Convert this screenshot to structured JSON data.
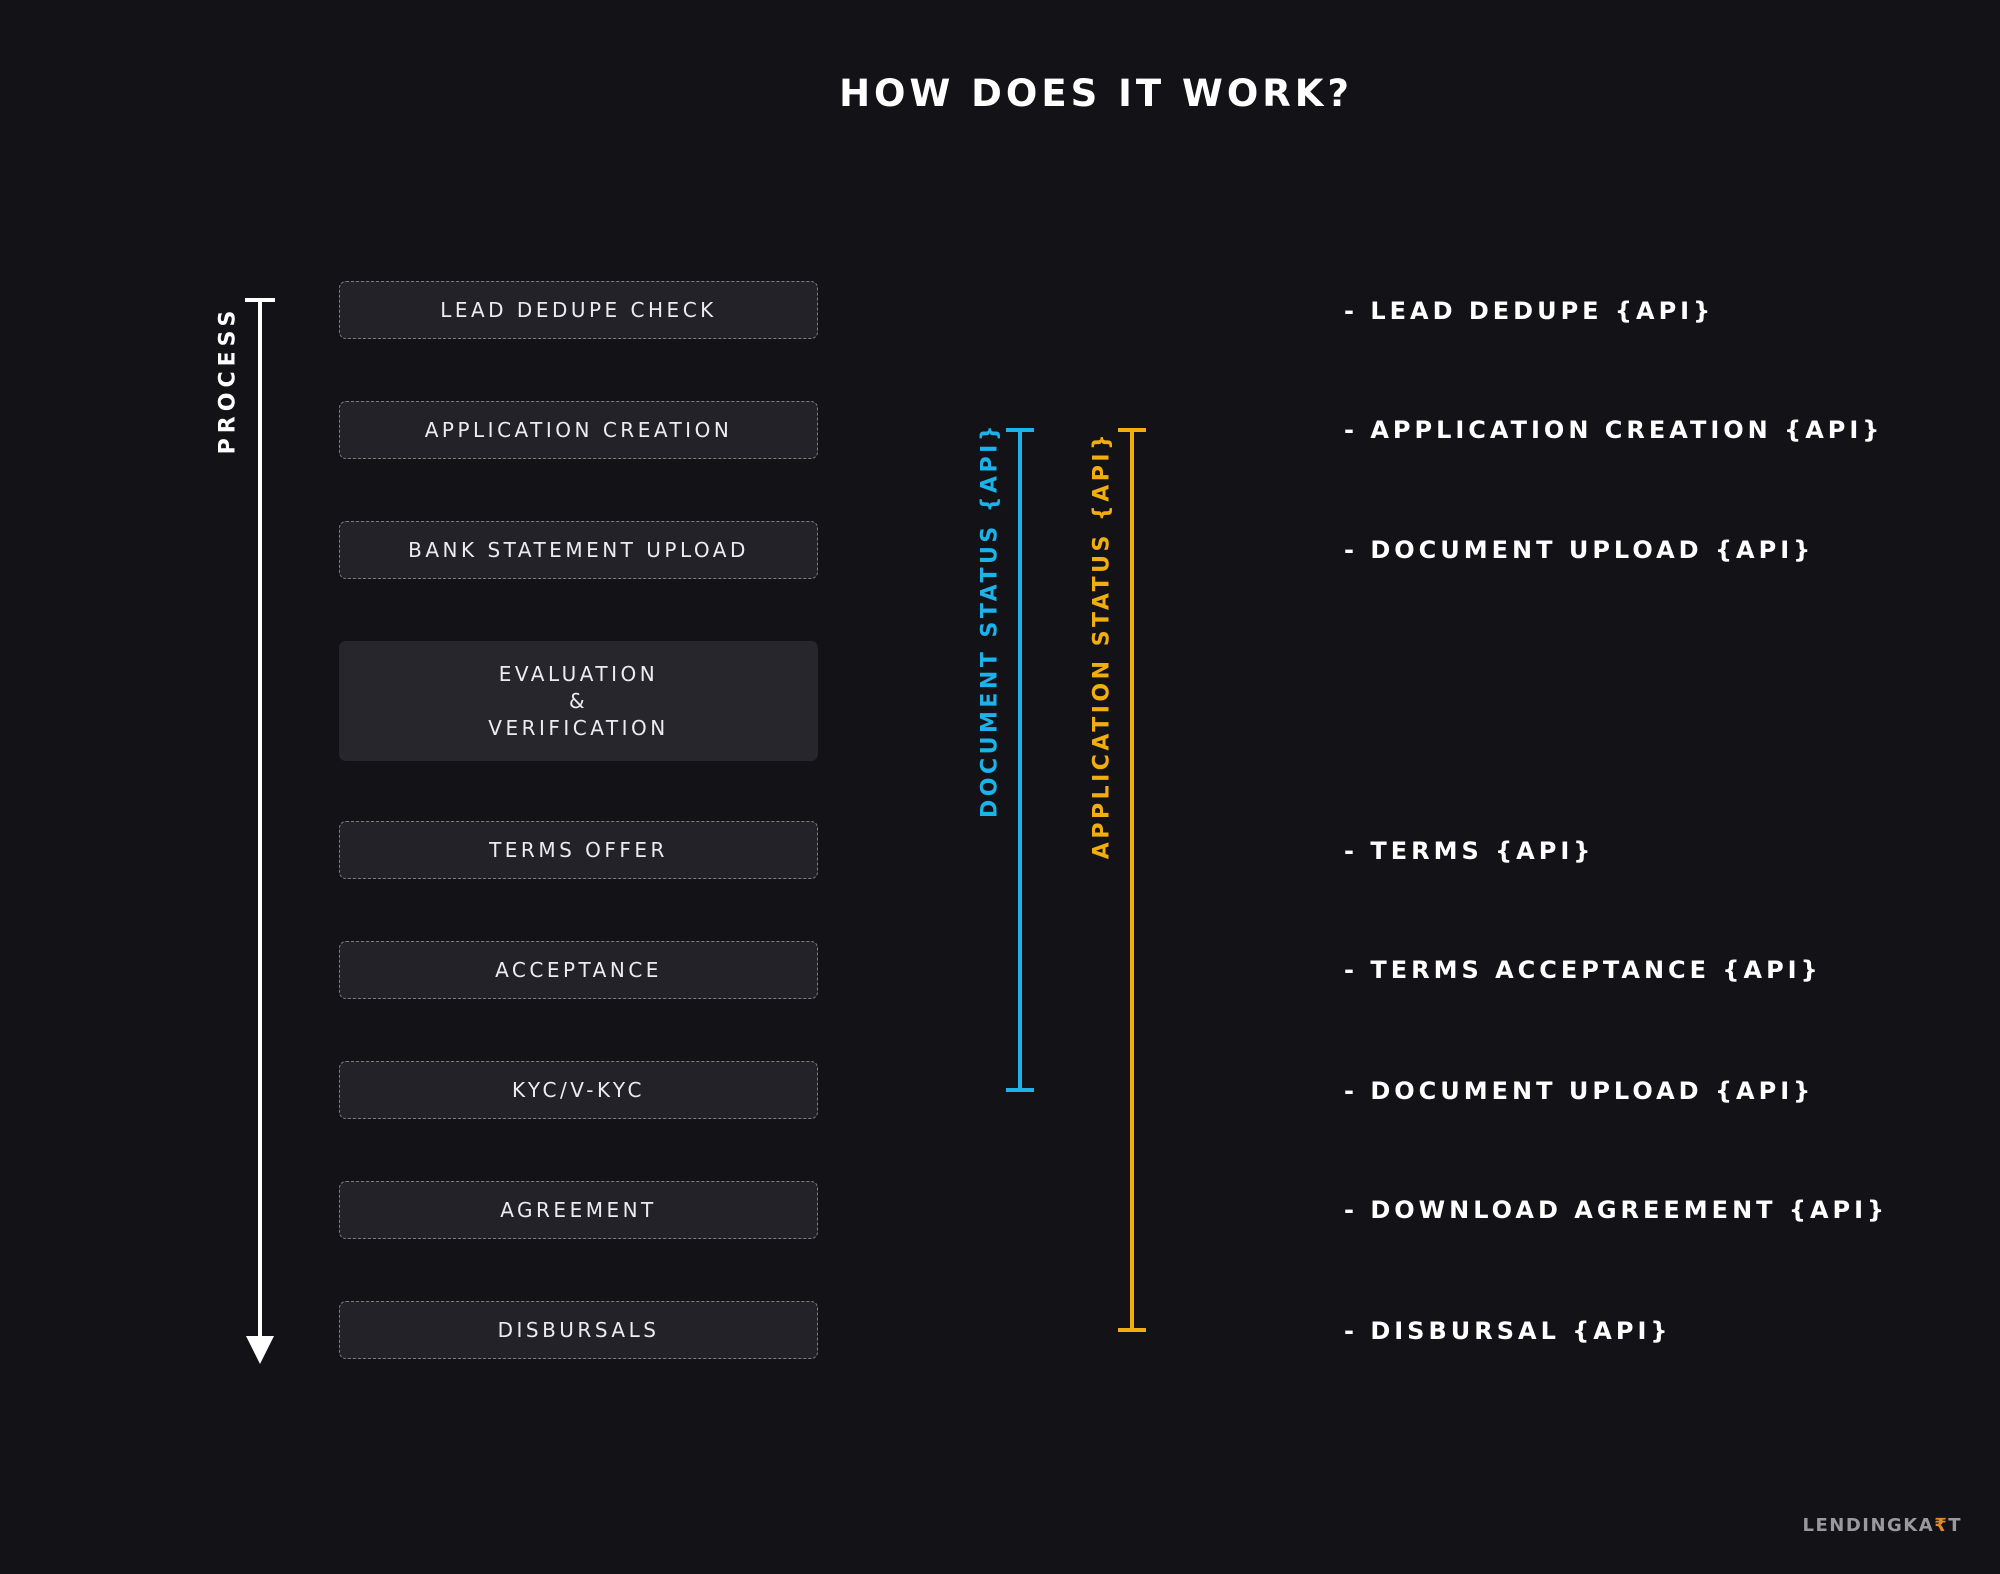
{
  "title": "HOW DOES IT WORK?",
  "process_label": "PROCESS",
  "steps": [
    "LEAD DEDUPE CHECK",
    "APPLICATION CREATION",
    "BANK STATEMENT UPLOAD",
    [
      "EVALUATION",
      "&",
      "VERIFICATION"
    ],
    "TERMS OFFER",
    "ACCEPTANCE",
    "KYC/V-KYC",
    "AGREEMENT",
    "DISBURSALS"
  ],
  "bars": {
    "document_status": {
      "label": "DOCUMENT STATUS {API}",
      "color": "#1bb3ea"
    },
    "application_status": {
      "label": "APPLICATION STATUS {API}",
      "color": "#f2ae0f"
    }
  },
  "apis": [
    "- LEAD DEDUPE {API}",
    "- APPLICATION CREATION {API}",
    "- DOCUMENT UPLOAD {API}",
    "- TERMS {API}",
    "- TERMS ACCEPTANCE {API}",
    "- DOCUMENT UPLOAD {API}",
    "- DOWNLOAD AGREEMENT {API}",
    "- DISBURSAL {API}"
  ],
  "logo": {
    "prefix": "LENDINGKA",
    "rupee": "₹",
    "suffix": "T"
  }
}
